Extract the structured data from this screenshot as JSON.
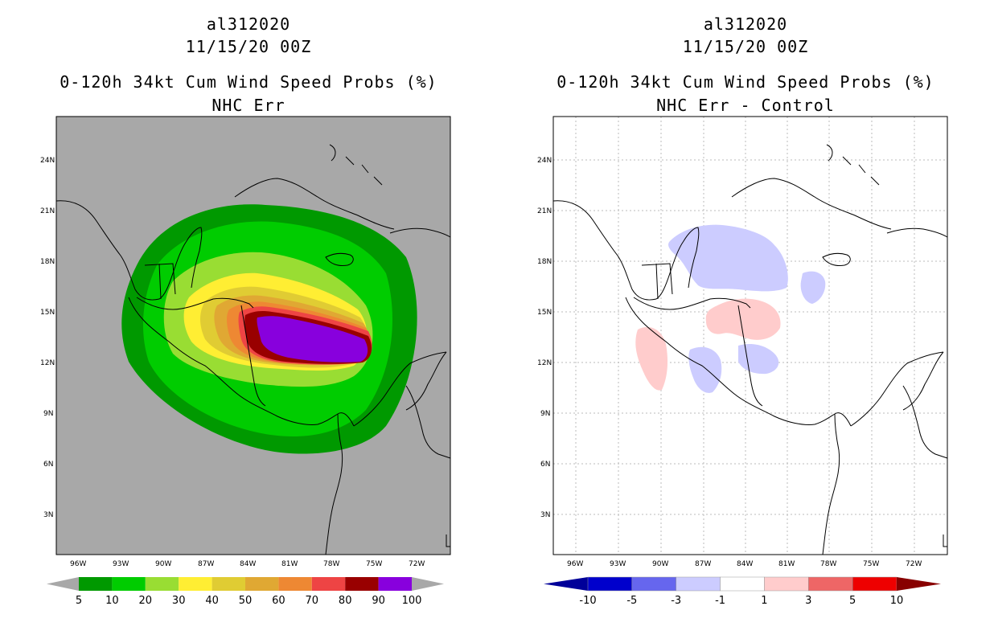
{
  "left_panel": {
    "title_lines": [
      "al312020",
      "11/15/20 00Z",
      "0-120h 34kt Cum Wind Speed Probs (%)",
      "NHC Err"
    ],
    "lat_labels": [
      "24N",
      "21N",
      "18N",
      "15N",
      "12N",
      "9N",
      "6N",
      "3N"
    ],
    "lon_labels": [
      "96W",
      "93W",
      "90W",
      "87W",
      "84W",
      "81W",
      "78W",
      "75W",
      "72W"
    ],
    "colorbar": {
      "labels": [
        "5",
        "10",
        "20",
        "30",
        "40",
        "50",
        "60",
        "70",
        "80",
        "90",
        "100"
      ],
      "colors": [
        "#009900",
        "#00cc00",
        "#99dd33",
        "#ffee33",
        "#e0cc33",
        "#e0a833",
        "#ee8833",
        "#ee4444",
        "#990000",
        "#8800dd"
      ],
      "under_color": "#a8a8a8",
      "over_color": "#a8a8a8"
    },
    "background_color": "#a8a8a8"
  },
  "right_panel": {
    "title_lines": [
      "al312020",
      "11/15/20 00Z",
      "0-120h 34kt Cum Wind Speed Probs (%)",
      "NHC Err - Control"
    ],
    "lat_labels": [
      "24N",
      "21N",
      "18N",
      "15N",
      "12N",
      "9N",
      "6N",
      "3N"
    ],
    "lon_labels": [
      "96W",
      "93W",
      "90W",
      "87W",
      "84W",
      "81W",
      "78W",
      "75W",
      "72W"
    ],
    "colorbar": {
      "labels": [
        "-10",
        "-5",
        "-3",
        "-1",
        "1",
        "3",
        "5",
        "10"
      ],
      "colors": [
        "#0000cc",
        "#6666ee",
        "#ccccff",
        "#ffffff",
        "#ffcccc",
        "#ee6666",
        "#ee0000"
      ],
      "under_color": "#000099",
      "over_color": "#880000"
    },
    "background_color": "#ffffff"
  }
}
